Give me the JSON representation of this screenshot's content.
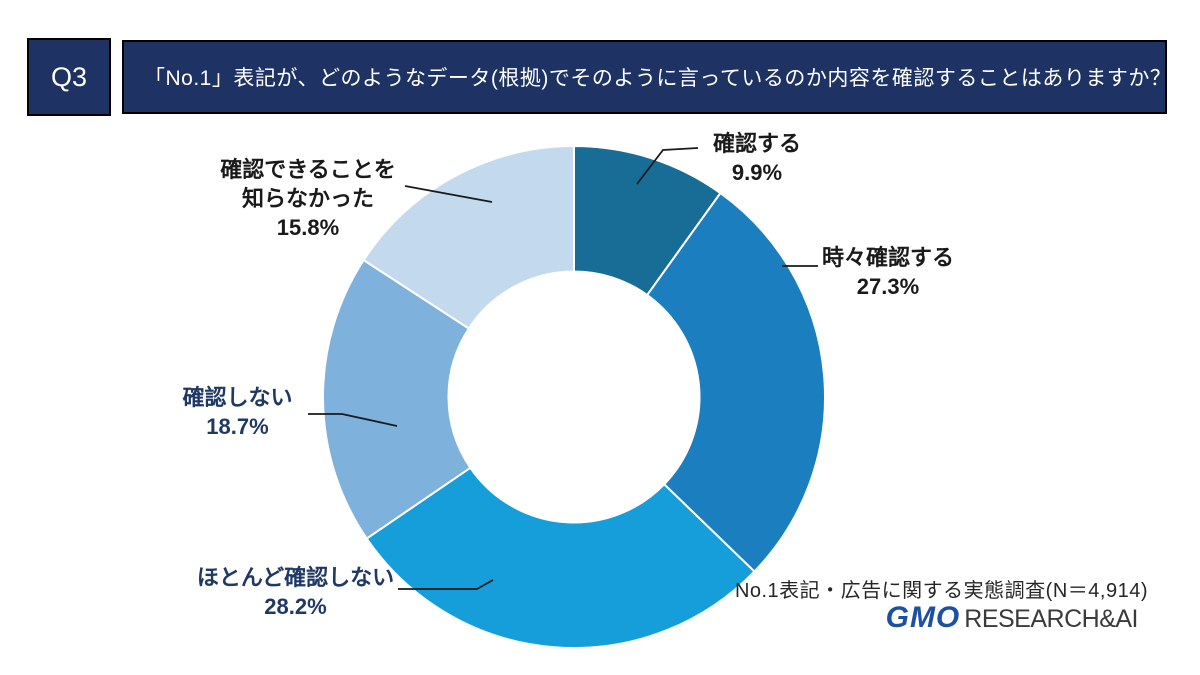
{
  "header": {
    "badge": "Q3",
    "question": "「No.1」表記が、どのようなデータ(根拠)でそのように言っているのか内容を確認することはありますか？"
  },
  "chart_data": {
    "type": "donut",
    "unit": "%",
    "direction": "clockwise",
    "start_angle_deg": 0,
    "inner_radius_ratio": 0.5,
    "segments": [
      {
        "label": "確認する",
        "label_lines": [
          "確認する"
        ],
        "value": 9.9,
        "color": "#176D96",
        "label_color": "#1A1A1A"
      },
      {
        "label": "時々確認する",
        "label_lines": [
          "時々確認する"
        ],
        "value": 27.3,
        "color": "#1B7EBE",
        "label_color": "#1A1A1A"
      },
      {
        "label": "ほとんど確認しない",
        "label_lines": [
          "ほとんど確認しない"
        ],
        "value": 28.2,
        "color": "#169EDB",
        "label_color": "#1F3864"
      },
      {
        "label": "確認しない",
        "label_lines": [
          "確認しない"
        ],
        "value": 18.7,
        "color": "#7EB1DB",
        "label_color": "#1F3864"
      },
      {
        "label": "確認できることを知らなかった",
        "label_lines": [
          "確認できることを",
          "知らなかった"
        ],
        "value": 15.8,
        "color": "#C3DAEE",
        "label_color": "#1A1A1A"
      }
    ]
  },
  "footer": {
    "survey_note": "No.1表記・広告に関する実態調査(N＝4,914)",
    "logo_gmo": "GMO",
    "logo_rest": "RESEARCH&AI"
  }
}
